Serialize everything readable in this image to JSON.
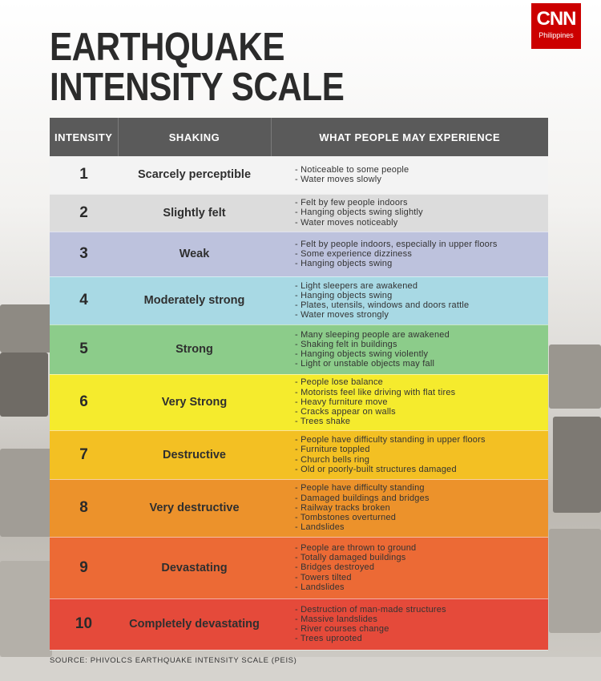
{
  "title_lines": [
    "EARTHQUAKE",
    "INTENSITY SCALE"
  ],
  "logo": {
    "brand": "CNN",
    "region": "Philippines",
    "color": "#cc0000"
  },
  "table": {
    "headers": [
      "INTENSITY",
      "SHAKING",
      "WHAT PEOPLE MAY EXPERIENCE"
    ],
    "rows": [
      {
        "level": "1",
        "shaking": "Scarcely perceptible",
        "color": "#f3f3f3",
        "experience": [
          "Noticeable to some people",
          "Water moves slowly"
        ]
      },
      {
        "level": "2",
        "shaking": "Slightly felt",
        "color": "#dcdcdc",
        "experience": [
          "Felt by few people indoors",
          "Hanging objects swing slightly",
          "Water moves noticeably"
        ]
      },
      {
        "level": "3",
        "shaking": "Weak",
        "color": "#bdc2dd",
        "experience": [
          "Felt by people indoors, especially in upper floors",
          "Some experience dizziness",
          "Hanging objects swing"
        ]
      },
      {
        "level": "4",
        "shaking": "Moderately strong",
        "color": "#a8d9e4",
        "experience": [
          "Light sleepers are awakened",
          "Hanging objects swing",
          "Plates, utensils, windows and doors rattle",
          "Water moves strongly"
        ]
      },
      {
        "level": "5",
        "shaking": "Strong",
        "color": "#8ccc8a",
        "experience": [
          "Many sleeping people are awakened",
          "Shaking felt in buildings",
          "Hanging objects swing violently",
          "Light or unstable objects may fall"
        ]
      },
      {
        "level": "6",
        "shaking": "Very Strong",
        "color": "#f5eb2d",
        "experience": [
          "People lose balance",
          "Motorists feel like driving with flat tires",
          "Heavy furniture move",
          "Cracks appear on walls",
          "Trees shake"
        ]
      },
      {
        "level": "7",
        "shaking": "Destructive",
        "color": "#f3c023",
        "experience": [
          "People have difficulty standing in upper floors",
          "Furniture toppled",
          "Church bells ring",
          "Old or poorly-built structures damaged"
        ]
      },
      {
        "level": "8",
        "shaking": "Very destructive",
        "color": "#ec922b",
        "experience": [
          "People have difficulty standing",
          "Damaged buildings and bridges",
          "Railway tracks broken",
          "Tombstones overturned",
          "Landslides"
        ]
      },
      {
        "level": "9",
        "shaking": "Devastating",
        "color": "#ec6a35",
        "experience": [
          "People are thrown to ground",
          "Totally damaged buildings",
          "Bridges destroyed",
          "Towers tilted",
          "Landslides"
        ]
      },
      {
        "level": "10",
        "shaking": "Completely devastating",
        "color": "#e54a3a",
        "experience": [
          "Destruction of man-made structures",
          "Massive landslides",
          "River courses change",
          "Trees uprooted"
        ]
      }
    ]
  },
  "source": "SOURCE: PHIVOLCS EARTHQUAKE INTENSITY SCALE (PEIS)"
}
